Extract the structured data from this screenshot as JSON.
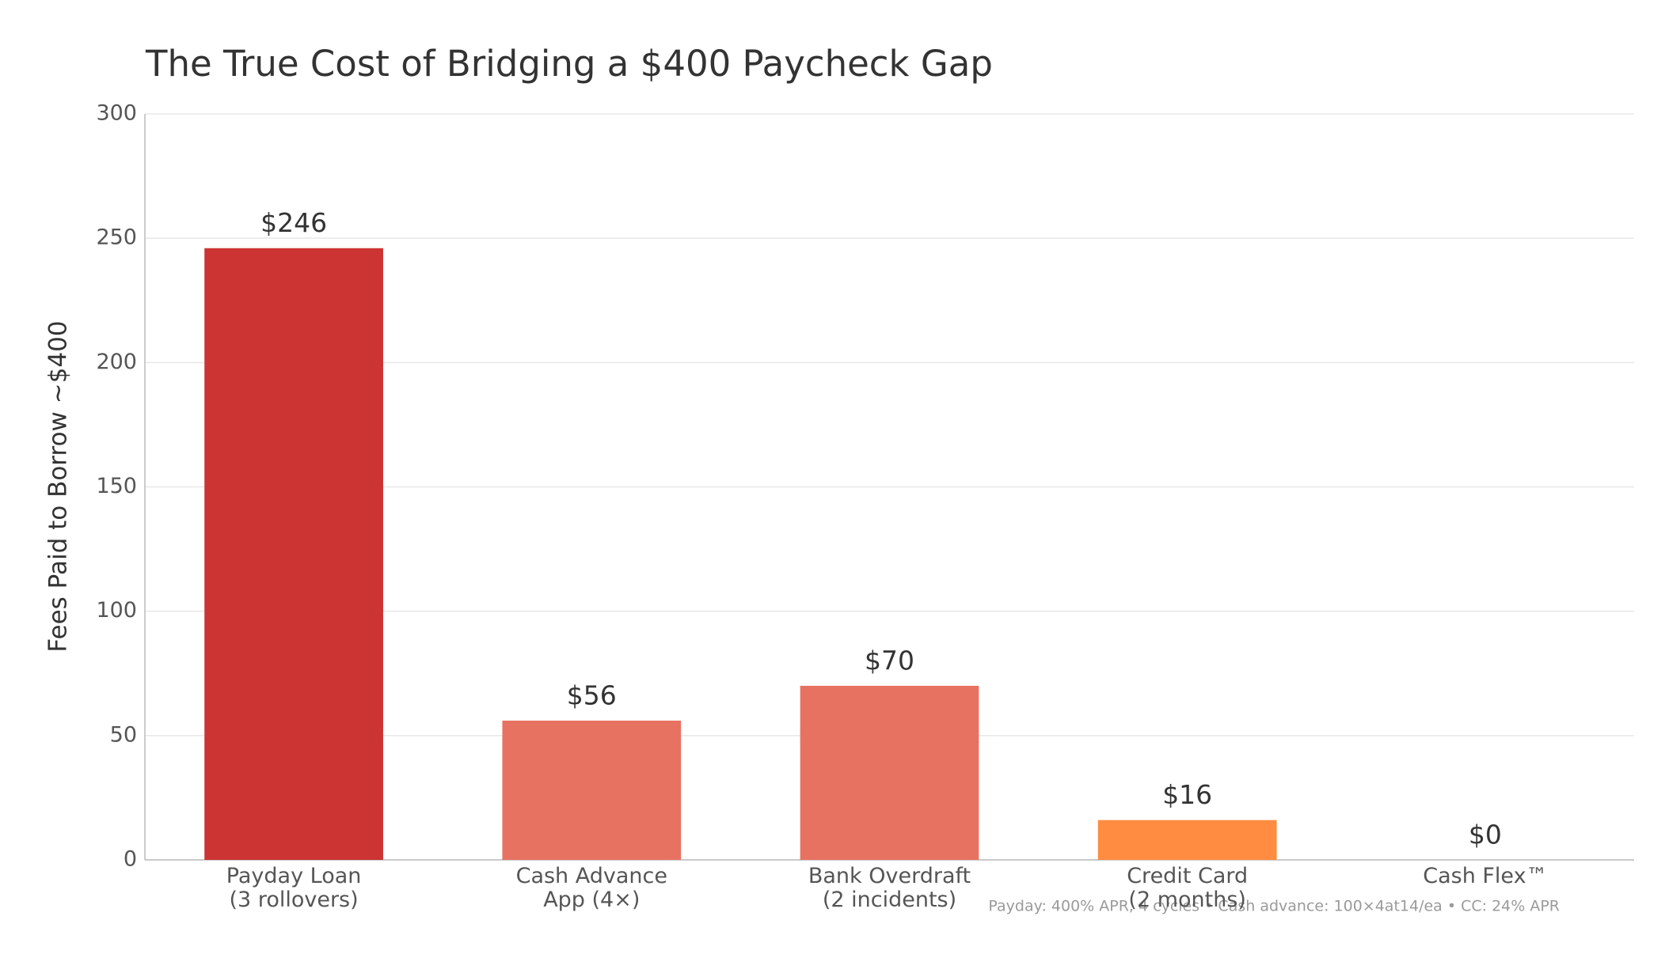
{
  "chart_data": {
    "type": "bar",
    "title": "The True Cost of Bridging a $400 Paycheck Gap",
    "y_label": "Fees Paid to Borrow ~$400",
    "categories": [
      "Payday Loan\n(3 rollovers)",
      "Cash Advance\nApp (4×)",
      "Bank Overdraft\n(2 incidents)",
      "Credit Card\n(2 months)",
      "Cash Flex™"
    ],
    "values": [
      246,
      56,
      70,
      16,
      0
    ],
    "value_labels": [
      "$246",
      "$56",
      "$70",
      "$16",
      "$0"
    ],
    "colors": [
      "#cc3333",
      "#e87262",
      "#e87262",
      "#ff8c40",
      "#2e7d32"
    ],
    "ylim": [
      0,
      300
    ],
    "yticks": [
      0,
      50,
      100,
      150,
      200,
      250,
      300
    ],
    "grid": true,
    "footnote": "Payday: 400% APR, 4 cycles  •  Cash advance: 100×4at14/ea  •  CC: 24% APR"
  }
}
